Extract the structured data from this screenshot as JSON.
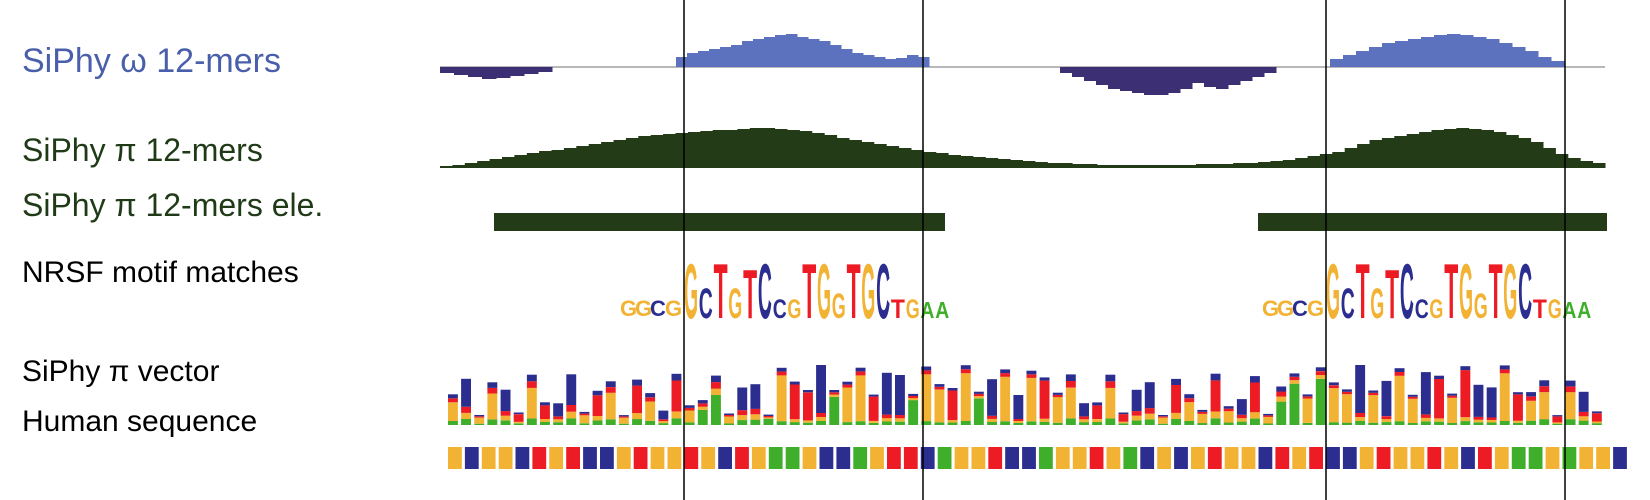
{
  "labels": {
    "omega": "SiPhy ω 12-mers",
    "pi": "SiPhy π 12-mers",
    "pi_elements": "SiPhy π 12-mers ele.",
    "nrsf": "NRSF motif matches",
    "pi_vector": "SiPhy π vector",
    "human_sequence": "Human sequence"
  },
  "colors": {
    "omega_positive": "#5d72bf",
    "omega_negative": "#3d2f73",
    "pi_track": "#233b16",
    "A": "#3fae2a",
    "C": "#2b2e8f",
    "G": "#f2b233",
    "T": "#ed1c24",
    "separator": "#000000"
  },
  "motif_logo": {
    "sequence": [
      "G",
      "C",
      "T",
      "G",
      "T",
      "C",
      "C",
      "G",
      "T",
      "G",
      "G",
      "T",
      "G",
      "C",
      "T",
      "G",
      "A",
      "A"
    ],
    "small_prefix": [
      "G",
      "G",
      "C",
      "G"
    ]
  },
  "human_sequence": "GCGGCTGTCCGTGGTGCTGAAGCCAGTTCAGGTCCAGGTGACGCGTGGCTGTCCGTGGTGCTGAAGAGGC"
}
